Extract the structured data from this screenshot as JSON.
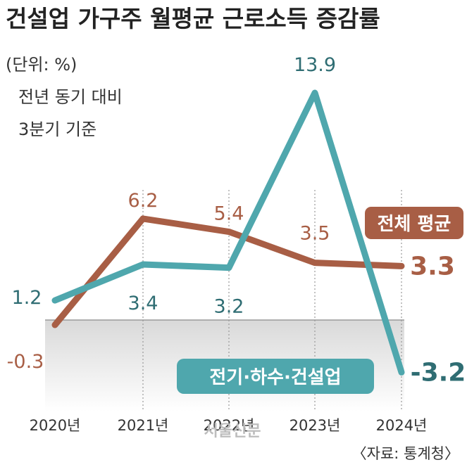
{
  "title": "건설업 가구주 월평균 근로소득 증감률",
  "unit": "(단위: %)",
  "notes": [
    "전년 동기 대비",
    "3분기 기준"
  ],
  "source": "〈자료: 통계청〉",
  "watermark": "서울신문",
  "colors": {
    "construction": "#4fa7ad",
    "construction_text": "#2f6d73",
    "overall": "#a85e45",
    "overall_text": "#a85e45",
    "negative_band": "#e3e3e3"
  },
  "chart_data": {
    "type": "line",
    "title": "건설업 가구주 월평균 근로소득 증감률",
    "ylabel": "",
    "xlabel": "",
    "categories": [
      "2020년",
      "2021년",
      "2022년",
      "2023년",
      "2024년"
    ],
    "ylim": [
      -4,
      15
    ],
    "grid": false,
    "series": [
      {
        "name": "전기·하수·건설업",
        "values": [
          1.2,
          3.4,
          3.2,
          13.9,
          -3.2
        ],
        "labels": [
          "1.2",
          "3.4",
          "3.2",
          "13.9",
          "-3.2"
        ]
      },
      {
        "name": "전체 평균",
        "values": [
          -0.3,
          6.2,
          5.4,
          3.5,
          3.3
        ],
        "labels": [
          "-0.3",
          "6.2",
          "5.4",
          "3.5",
          "3.3"
        ]
      }
    ]
  }
}
